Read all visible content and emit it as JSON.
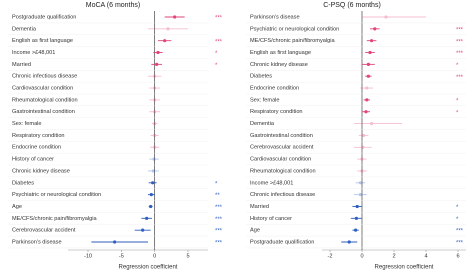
{
  "chart_data": [
    {
      "type": "forest",
      "title": "MoCA (6 months)",
      "x_label": "Regression coefficient",
      "xlim": [
        -13,
        8
      ],
      "xticks": [
        -10,
        -5,
        0,
        5
      ],
      "colors": {
        "positive": "#e0457b",
        "negative": "#2f5fbf"
      },
      "categories": [
        "Postgraduate qualification",
        "Dementia",
        "English as first language",
        "Income >£48,001",
        "Married",
        "Chronic infectious disease",
        "Cardiovascular condition",
        "Rheumatological condition",
        "Gastrointestinal condition",
        "Sex: female",
        "Respiratory condition",
        "Endocrine condition",
        "History of cancer",
        "Chronic kidney disease",
        "Diabetes",
        "Psychiatric or neurological condition",
        "Age",
        "ME/CFS/chronic pain/fibromyalgia",
        "Cerebrovascular accident",
        "Parkinson's disease"
      ],
      "values": [
        3,
        2,
        1.5,
        0.5,
        0.3,
        0,
        0,
        0,
        0,
        0,
        0,
        0,
        -0.1,
        -0.2,
        -0.3,
        -0.5,
        -0.6,
        -1.2,
        -1.8,
        -6
      ],
      "ci_low": [
        1.5,
        -1,
        0.5,
        -0.2,
        -0.5,
        -1,
        -0.8,
        -0.8,
        -0.8,
        -0.4,
        -0.6,
        -0.7,
        -0.8,
        -1,
        -0.9,
        -1,
        -0.9,
        -2,
        -3,
        -9.5
      ],
      "ci_high": [
        4.5,
        5,
        2.5,
        1.2,
        1.1,
        1,
        0.8,
        0.8,
        0.8,
        0.4,
        0.6,
        0.7,
        0.6,
        0.6,
        0.3,
        0,
        -0.3,
        -0.4,
        -0.6,
        -1
      ],
      "stars": [
        "***",
        null,
        "***",
        "*",
        "*",
        null,
        null,
        null,
        null,
        null,
        null,
        null,
        null,
        null,
        "*",
        "**",
        "***",
        "***",
        "***",
        "***"
      ]
    },
    {
      "type": "forest",
      "title": "C-PSQ (6 months)",
      "x_label": "Regression coefficient",
      "xlim": [
        -2.5,
        6.5
      ],
      "xticks": [
        -2,
        0,
        2,
        4,
        6
      ],
      "colors": {
        "positive": "#e0457b",
        "negative": "#2f5fbf"
      },
      "categories": [
        "Parkinson's disease",
        "Psychiatric or neurological condition",
        "ME/CFS/chronic pain/fibromyalgia",
        "English as first language",
        "Chronic kidney disease",
        "Diabetes",
        "Endocrine condition",
        "Sex: female",
        "Respiratory condition",
        "Dementia",
        "Gastrointestinal condition",
        "Cerebrovascular accident",
        "Cardiovascular condition",
        "Rheumatological condition",
        "Income >£48,001",
        "Chronic infectious disease",
        "Married",
        "History of cancer",
        "Age",
        "Postgraduate qualification"
      ],
      "values": [
        1.5,
        0.8,
        0.6,
        0.5,
        0.4,
        0.4,
        0.3,
        0.3,
        0.25,
        0.6,
        0.1,
        0.05,
        0,
        0,
        -0.1,
        -0.1,
        -0.3,
        -0.35,
        -0.4,
        -0.8
      ],
      "ci_low": [
        0,
        0.5,
        0.3,
        0.2,
        0,
        0.2,
        -0.1,
        0.1,
        0,
        -0.5,
        -0.2,
        -0.5,
        -0.3,
        -0.3,
        -0.4,
        -0.5,
        -0.6,
        -0.7,
        -0.6,
        -1.3
      ],
      "ci_high": [
        4,
        1.1,
        0.9,
        0.8,
        0.8,
        0.6,
        0.7,
        0.5,
        0.5,
        2.5,
        0.4,
        0.6,
        0.3,
        0.3,
        0.2,
        0.3,
        0,
        0,
        -0.2,
        -0.3
      ],
      "stars": [
        null,
        "***",
        "***",
        "***",
        "*",
        "***",
        null,
        "*",
        "*",
        null,
        null,
        null,
        null,
        null,
        null,
        null,
        "*",
        "*",
        "***",
        "***"
      ]
    }
  ]
}
